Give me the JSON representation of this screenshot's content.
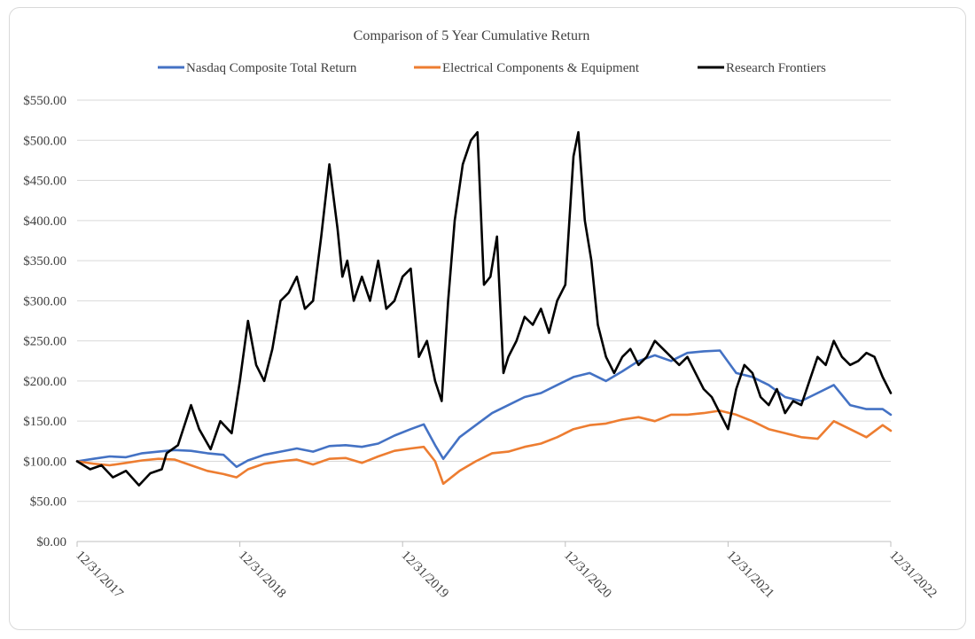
{
  "chart_data": {
    "type": "line",
    "title": "Comparison of 5 Year Cumulative Return",
    "xlabel": "",
    "ylabel": "",
    "ylim": [
      0,
      550
    ],
    "yticks": [
      0,
      50,
      100,
      150,
      200,
      250,
      300,
      350,
      400,
      450,
      500,
      550
    ],
    "ytick_labels": [
      "$0.00",
      "$50.00",
      "$100.00",
      "$150.00",
      "$200.00",
      "$250.00",
      "$300.00",
      "$350.00",
      "$400.00",
      "$450.00",
      "$500.00",
      "$550.00"
    ],
    "xlim": [
      2018.0,
      2023.0
    ],
    "xticks": [
      2018.0,
      2019.0,
      2020.0,
      2021.0,
      2022.0,
      2023.0
    ],
    "xtick_labels": [
      "12/31/2017",
      "12/31/2018",
      "12/31/2019",
      "12/31/2020",
      "12/31/2021",
      "12/31/2022"
    ],
    "legend_position": "top-center",
    "series": [
      {
        "name": "Nasdaq Composite Total Return",
        "color": "#4472c4",
        "x": [
          2018.0,
          2018.1,
          2018.2,
          2018.3,
          2018.4,
          2018.5,
          2018.6,
          2018.7,
          2018.8,
          2018.9,
          2018.98,
          2019.05,
          2019.15,
          2019.25,
          2019.35,
          2019.45,
          2019.55,
          2019.65,
          2019.75,
          2019.85,
          2019.95,
          2020.05,
          2020.13,
          2020.2,
          2020.25,
          2020.35,
          2020.45,
          2020.55,
          2020.65,
          2020.75,
          2020.85,
          2020.95,
          2021.05,
          2021.15,
          2021.25,
          2021.35,
          2021.45,
          2021.55,
          2021.65,
          2021.75,
          2021.85,
          2021.95,
          2022.05,
          2022.15,
          2022.25,
          2022.35,
          2022.45,
          2022.55,
          2022.65,
          2022.75,
          2022.85,
          2022.95,
          2023.0
        ],
        "values": [
          100,
          103,
          106,
          105,
          110,
          112,
          114,
          113,
          110,
          108,
          93,
          101,
          108,
          112,
          116,
          112,
          119,
          120,
          118,
          122,
          132,
          140,
          146,
          120,
          103,
          130,
          145,
          160,
          170,
          180,
          185,
          195,
          205,
          210,
          200,
          212,
          225,
          232,
          225,
          235,
          237,
          238,
          210,
          205,
          195,
          180,
          175,
          185,
          195,
          170,
          165,
          165,
          158
        ]
      },
      {
        "name": "Electrical Components & Equipment",
        "color": "#ed7d31",
        "x": [
          2018.0,
          2018.1,
          2018.2,
          2018.3,
          2018.4,
          2018.5,
          2018.6,
          2018.7,
          2018.8,
          2018.9,
          2018.98,
          2019.05,
          2019.15,
          2019.25,
          2019.35,
          2019.45,
          2019.55,
          2019.65,
          2019.75,
          2019.85,
          2019.95,
          2020.05,
          2020.13,
          2020.2,
          2020.25,
          2020.35,
          2020.45,
          2020.55,
          2020.65,
          2020.75,
          2020.85,
          2020.95,
          2021.05,
          2021.15,
          2021.25,
          2021.35,
          2021.45,
          2021.55,
          2021.65,
          2021.75,
          2021.85,
          2021.95,
          2022.05,
          2022.15,
          2022.25,
          2022.35,
          2022.45,
          2022.55,
          2022.65,
          2022.75,
          2022.85,
          2022.95,
          2023.0
        ],
        "values": [
          100,
          97,
          95,
          98,
          101,
          103,
          102,
          95,
          88,
          84,
          80,
          90,
          97,
          100,
          102,
          96,
          103,
          104,
          98,
          106,
          113,
          116,
          118,
          100,
          72,
          88,
          100,
          110,
          112,
          118,
          122,
          130,
          140,
          145,
          147,
          152,
          155,
          150,
          158,
          158,
          160,
          163,
          158,
          150,
          140,
          135,
          130,
          128,
          150,
          140,
          130,
          145,
          138
        ]
      },
      {
        "name": "Research Frontiers",
        "color": "#000000",
        "x": [
          2018.0,
          2018.08,
          2018.15,
          2018.22,
          2018.3,
          2018.38,
          2018.45,
          2018.52,
          2018.55,
          2018.62,
          2018.7,
          2018.75,
          2018.82,
          2018.88,
          2018.95,
          2019.0,
          2019.05,
          2019.1,
          2019.15,
          2019.2,
          2019.25,
          2019.3,
          2019.35,
          2019.4,
          2019.45,
          2019.5,
          2019.55,
          2019.6,
          2019.63,
          2019.66,
          2019.7,
          2019.75,
          2019.8,
          2019.85,
          2019.9,
          2019.95,
          2020.0,
          2020.05,
          2020.1,
          2020.15,
          2020.2,
          2020.24,
          2020.28,
          2020.32,
          2020.37,
          2020.42,
          2020.46,
          2020.5,
          2020.54,
          2020.58,
          2020.62,
          2020.65,
          2020.7,
          2020.75,
          2020.8,
          2020.85,
          2020.9,
          2020.95,
          2021.0,
          2021.05,
          2021.08,
          2021.12,
          2021.16,
          2021.2,
          2021.25,
          2021.3,
          2021.35,
          2021.4,
          2021.45,
          2021.5,
          2021.55,
          2021.6,
          2021.65,
          2021.7,
          2021.75,
          2021.8,
          2021.85,
          2021.9,
          2021.95,
          2022.0,
          2022.05,
          2022.1,
          2022.15,
          2022.2,
          2022.25,
          2022.3,
          2022.35,
          2022.4,
          2022.45,
          2022.5,
          2022.55,
          2022.6,
          2022.65,
          2022.7,
          2022.75,
          2022.8,
          2022.85,
          2022.9,
          2022.95,
          2023.0
        ],
        "values": [
          100,
          90,
          95,
          80,
          88,
          70,
          85,
          90,
          110,
          120,
          170,
          140,
          115,
          150,
          135,
          200,
          275,
          220,
          200,
          240,
          300,
          310,
          330,
          290,
          300,
          380,
          470,
          390,
          330,
          350,
          300,
          330,
          300,
          350,
          290,
          300,
          330,
          340,
          230,
          250,
          200,
          175,
          300,
          400,
          470,
          500,
          510,
          320,
          330,
          380,
          210,
          230,
          250,
          280,
          270,
          290,
          260,
          300,
          320,
          480,
          510,
          400,
          350,
          270,
          230,
          210,
          230,
          240,
          220,
          230,
          250,
          240,
          230,
          220,
          230,
          210,
          190,
          180,
          160,
          140,
          190,
          220,
          210,
          180,
          170,
          190,
          160,
          175,
          170,
          200,
          230,
          220,
          250,
          230,
          220,
          225,
          235,
          230,
          205,
          185
        ]
      }
    ]
  }
}
